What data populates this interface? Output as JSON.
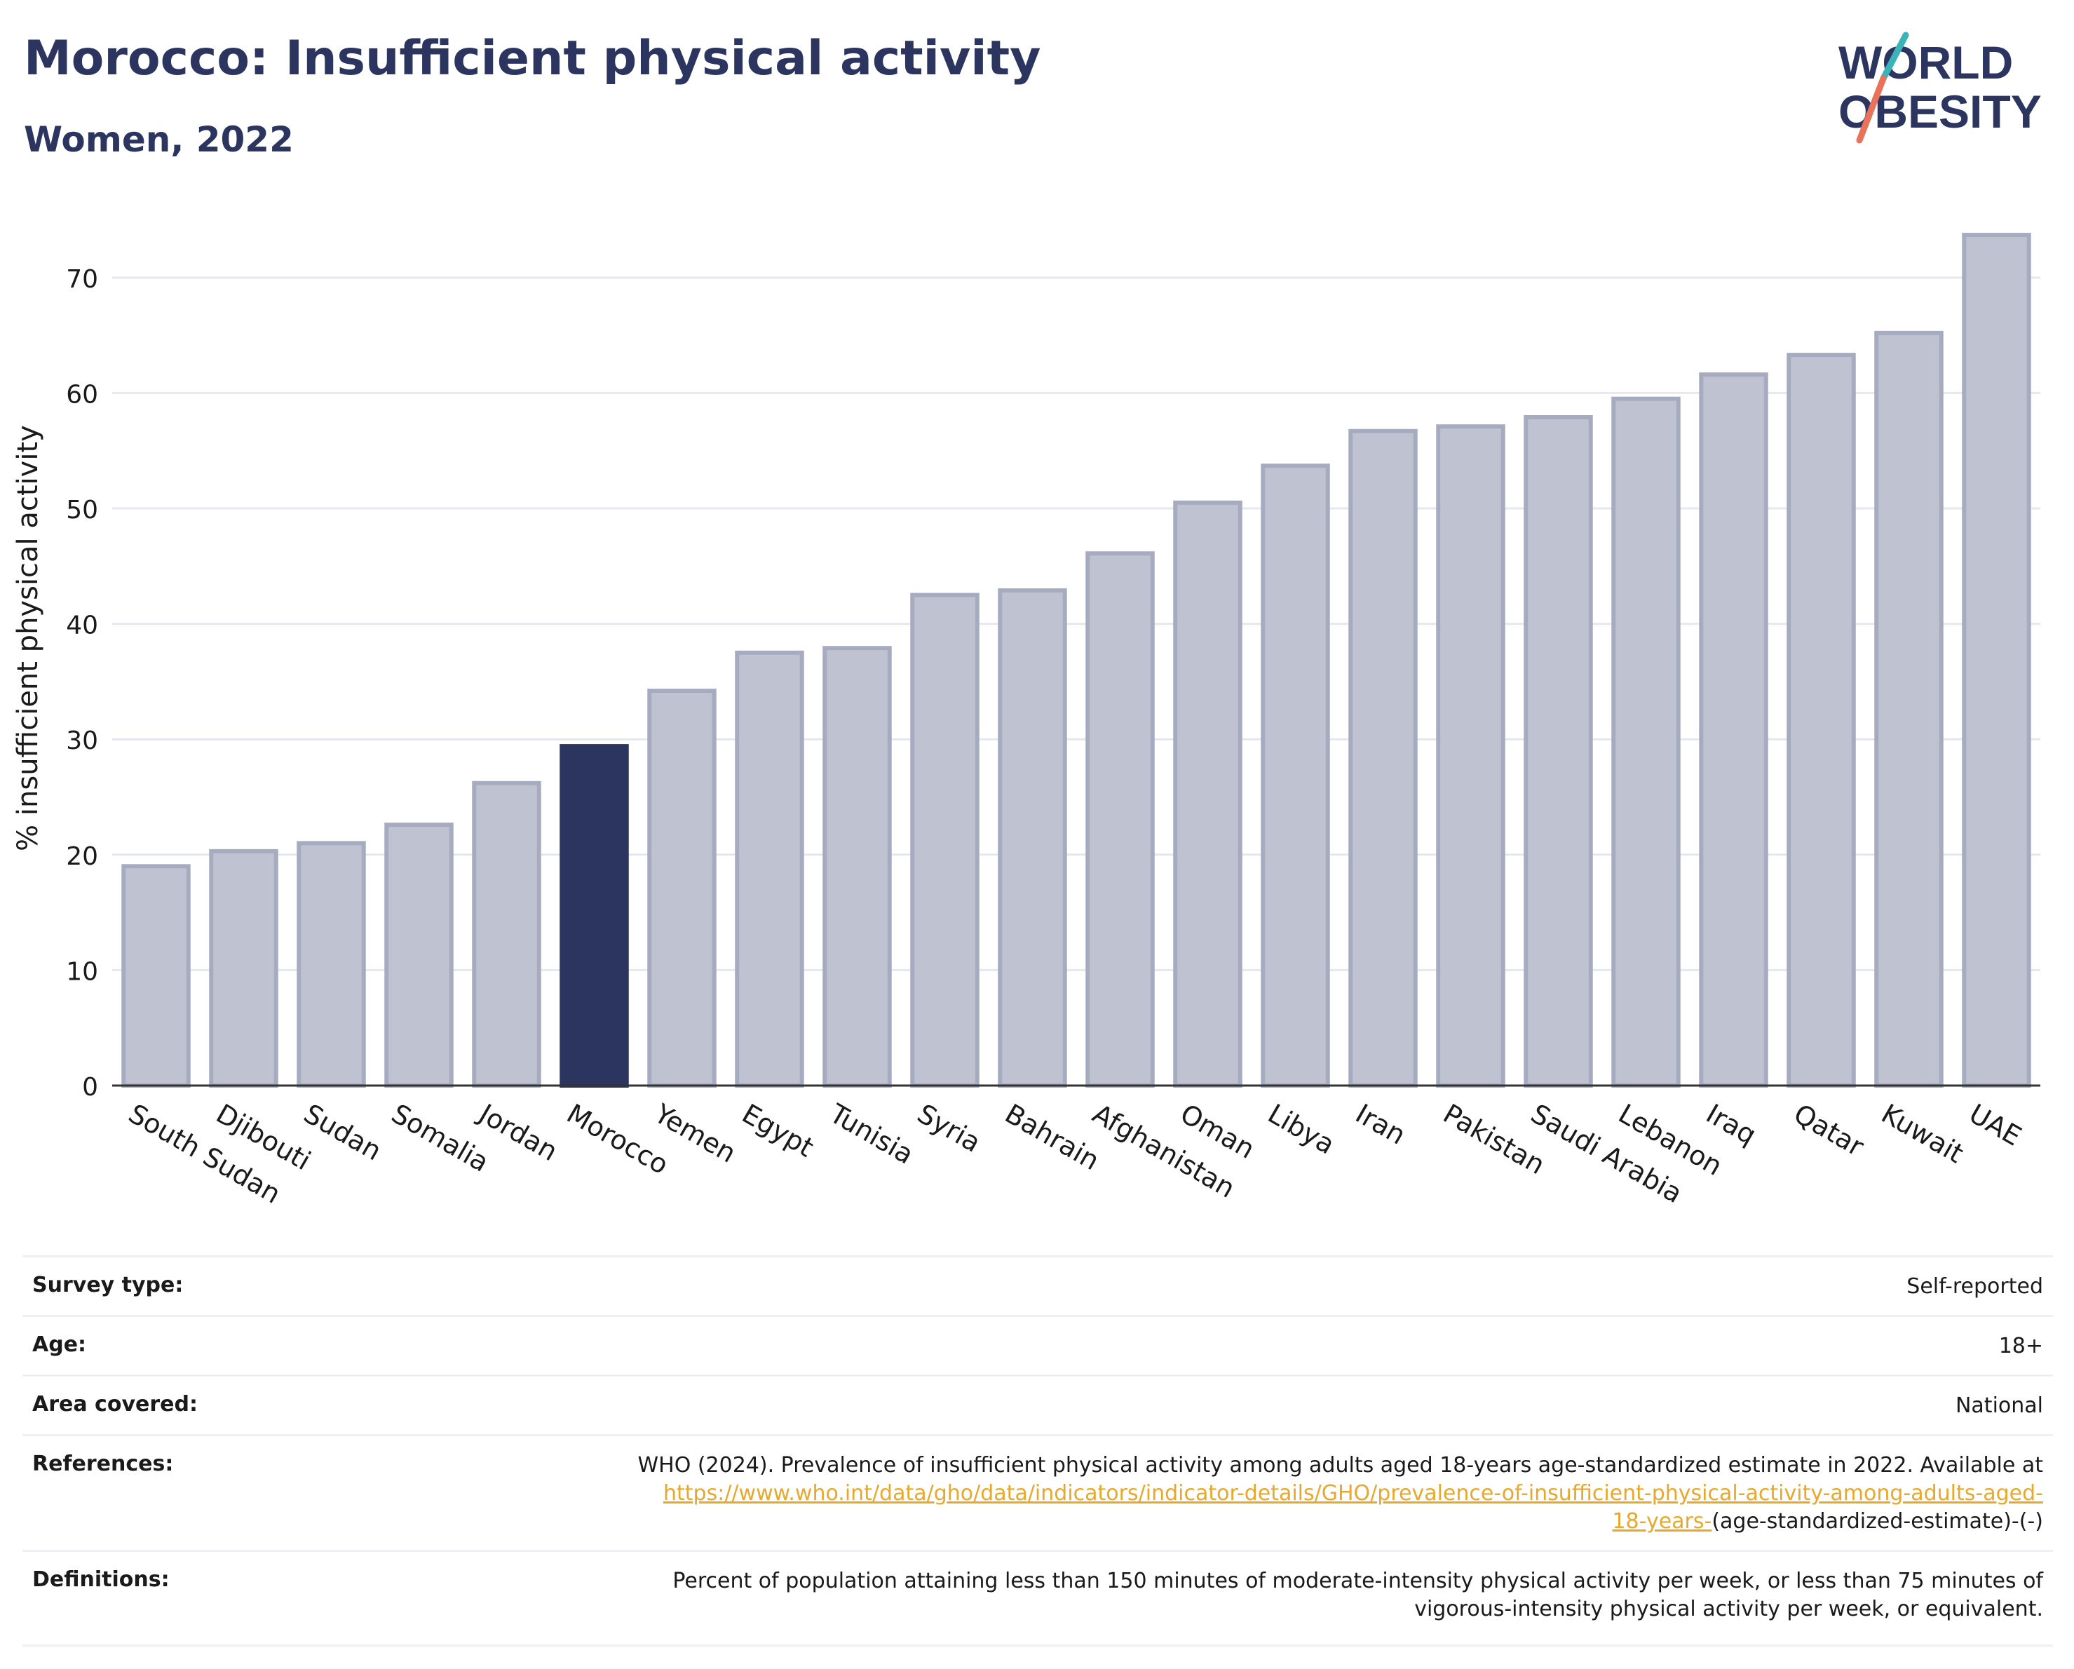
{
  "header": {
    "title": "Morocco: Insufficient physical activity",
    "subtitle": "Women, 2022"
  },
  "logo": {
    "line1": "WORLD",
    "line2": "OBESITY",
    "accent_colors": [
      "#3bb3b9",
      "#e8725a"
    ],
    "text_color": "#2b3560"
  },
  "chart_data": {
    "type": "bar",
    "ylabel": "% insufficient physical activity",
    "ylim": [
      0,
      74
    ],
    "yticks": [
      0,
      10,
      20,
      30,
      40,
      50,
      60,
      70
    ],
    "grid": true,
    "categories": [
      "South Sudan",
      "Djibouti",
      "Sudan",
      "Somalia",
      "Jordan",
      "Morocco",
      "Yemen",
      "Egypt",
      "Tunisia",
      "Syria",
      "Bahrain",
      "Afghanistan",
      "Oman",
      "Libya",
      "Iran",
      "Pakistan",
      "Saudi Arabia",
      "Lebanon",
      "Iraq",
      "Qatar",
      "Kuwait",
      "UAE"
    ],
    "values": [
      19.0,
      20.3,
      21.0,
      22.6,
      26.2,
      29.4,
      34.2,
      37.5,
      37.9,
      42.5,
      42.9,
      46.1,
      50.5,
      53.7,
      56.7,
      57.1,
      57.9,
      59.5,
      61.6,
      63.3,
      65.2,
      73.7
    ],
    "highlight": "Morocco",
    "colors": {
      "bar": "#bfc3d1",
      "bar_border": "#a6abc0",
      "highlight": "#2b3560"
    }
  },
  "meta": {
    "survey_type": {
      "label": "Survey type:",
      "value": "Self-reported"
    },
    "age": {
      "label": "Age:",
      "value": "18+"
    },
    "area": {
      "label": "Area covered:",
      "value": "National"
    },
    "references": {
      "label": "References:",
      "text": "WHO (2024). Prevalence of insufficient physical activity among adults aged 18-years age-standardized estimate in 2022. Available at",
      "link_line1": "https://www.who.int/data/gho/data/indicators/indicator-details/GHO/prevalence-of-insufficient-physical-activity-among-adults-aged-",
      "link_line2": "18-years-",
      "suffix": "(age-standardized-estimate)-(-)"
    },
    "definitions": {
      "label": "Definitions:",
      "line1": "Percent of population attaining less than 150 minutes of moderate-intensity physical activity per week, or less than 75 minutes of",
      "line2": "vigorous-intensity physical activity per week, or equivalent."
    }
  }
}
